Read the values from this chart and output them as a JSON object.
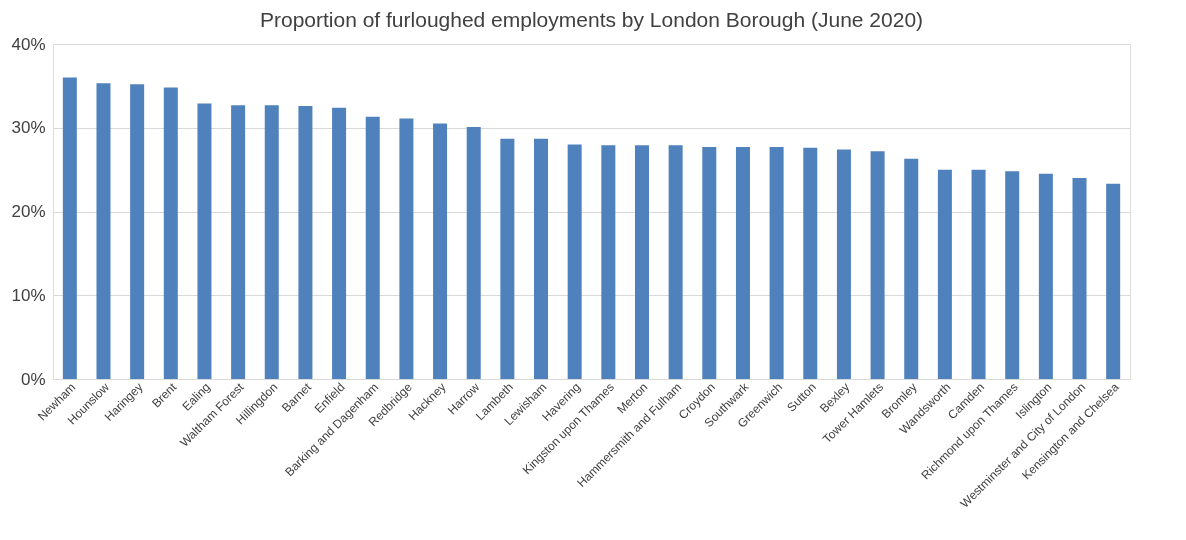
{
  "chart_data": {
    "type": "bar",
    "title": "Proportion of furloughed employments by London Borough (June 2020)",
    "categories": [
      "Newham",
      "Hounslow",
      "Haringey",
      "Brent",
      "Ealing",
      "Waltham Forest",
      "Hillingdon",
      "Barnet",
      "Enfield",
      "Barking and Dagenham",
      "Redbridge",
      "Hackney",
      "Harrow",
      "Lambeth",
      "Lewisham",
      "Havering",
      "Kingston upon Thames",
      "Merton",
      "Hammersmith and Fulham",
      "Croydon",
      "Southwark",
      "Greenwich",
      "Sutton",
      "Bexley",
      "Tower Hamlets",
      "Bromley",
      "Wandsworth",
      "Camden",
      "Richmond upon Thames",
      "Islington",
      "Westminster and City of London",
      "Kensington and Chelsea"
    ],
    "values": [
      36.0,
      35.3,
      35.2,
      34.8,
      32.9,
      32.7,
      32.7,
      32.6,
      32.4,
      31.3,
      31.1,
      30.5,
      30.1,
      28.7,
      28.7,
      28.0,
      27.9,
      27.9,
      27.9,
      27.7,
      27.7,
      27.7,
      27.6,
      27.4,
      27.2,
      26.3,
      25.0,
      25.0,
      24.8,
      24.5,
      24.0,
      23.3
    ],
    "color": "#4f81bd",
    "ylim": [
      0,
      40
    ],
    "yticks": [
      {
        "value": 0,
        "label": "0%"
      },
      {
        "value": 10,
        "label": "10%"
      },
      {
        "value": 20,
        "label": "20%"
      },
      {
        "value": 30,
        "label": "30%"
      },
      {
        "value": 40,
        "label": "40%"
      }
    ],
    "grid": "y"
  }
}
